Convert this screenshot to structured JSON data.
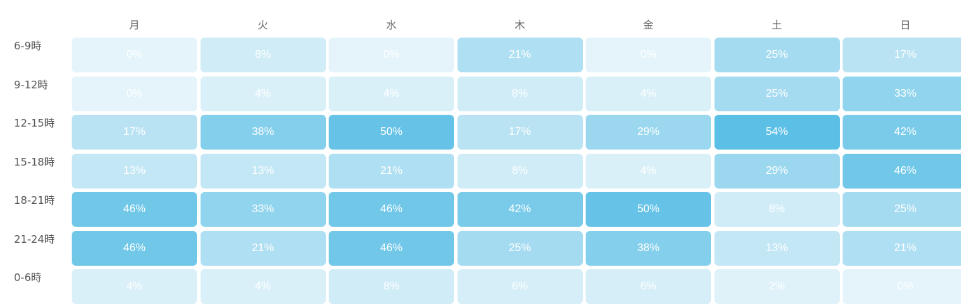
{
  "chart_data": {
    "type": "heatmap",
    "columns": [
      "月",
      "火",
      "水",
      "木",
      "金",
      "土",
      "日"
    ],
    "rows": [
      "6-9時",
      "9-12時",
      "12-15時",
      "15-18時",
      "18-21時",
      "21-24時",
      "0-6時"
    ],
    "unit": "%",
    "values": [
      [
        0,
        8,
        0,
        21,
        0,
        25,
        17
      ],
      [
        0,
        4,
        4,
        8,
        4,
        25,
        33
      ],
      [
        17,
        38,
        50,
        17,
        29,
        54,
        42
      ],
      [
        13,
        13,
        21,
        8,
        4,
        29,
        46
      ],
      [
        46,
        33,
        46,
        42,
        50,
        8,
        25
      ],
      [
        46,
        21,
        46,
        25,
        38,
        13,
        21
      ],
      [
        4,
        4,
        8,
        6,
        6,
        2,
        0
      ]
    ],
    "color_low": "#e4f4fa",
    "color_high": "#5cbfe5"
  }
}
